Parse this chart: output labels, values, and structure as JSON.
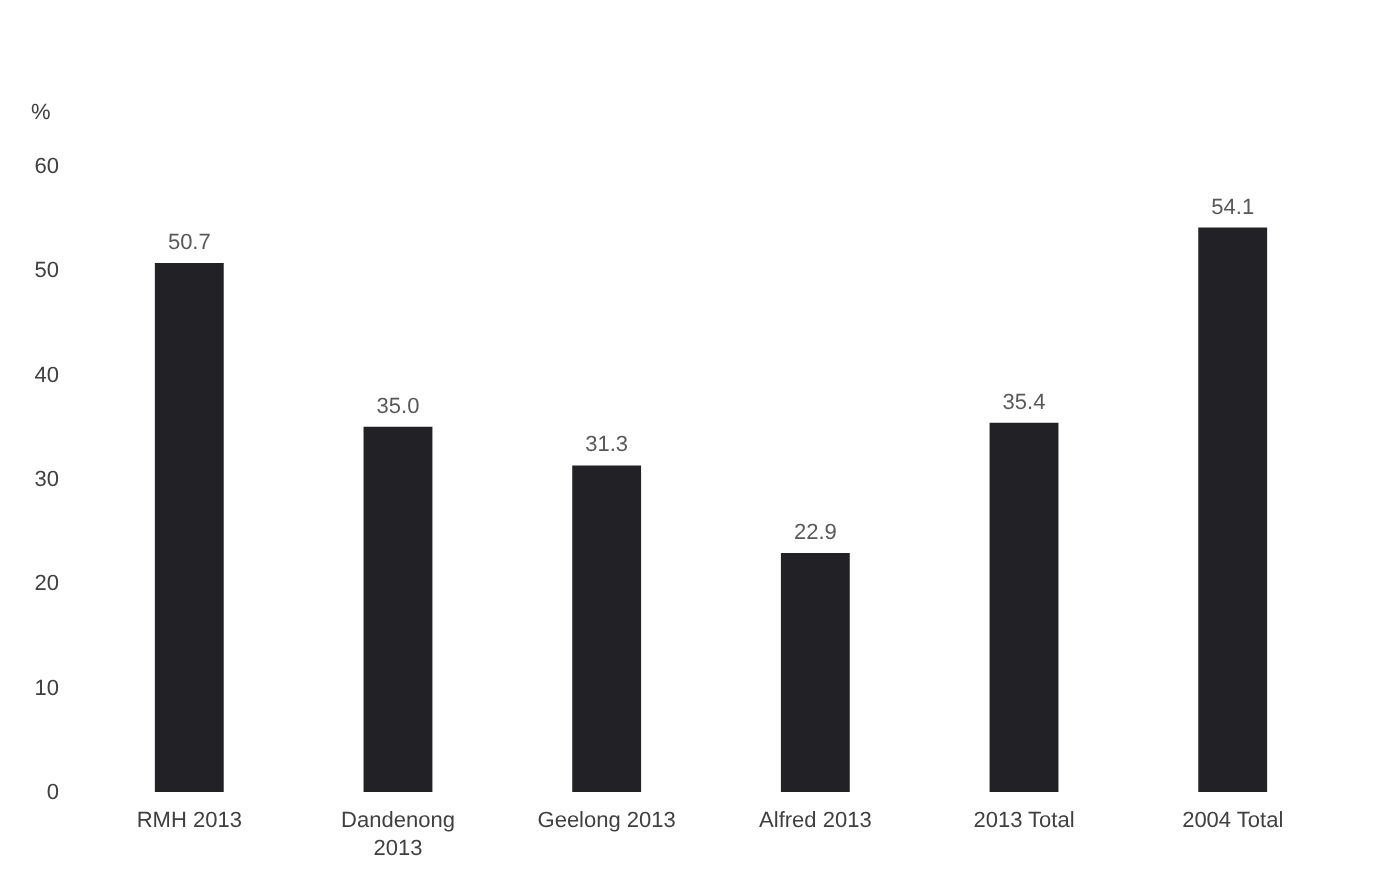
{
  "chart_data": {
    "type": "bar",
    "ylabel": "%",
    "categories": [
      "RMH 2013",
      "Dandenong 2013",
      "Geelong 2013",
      "Alfred 2013",
      "2013 Total",
      "2004 Total"
    ],
    "values": [
      50.7,
      35.0,
      31.3,
      22.9,
      35.4,
      54.1
    ],
    "value_labels": [
      "50.7",
      "35.0",
      "31.3",
      "22.9",
      "35.4",
      "54.1"
    ],
    "color": "#222226",
    "ylim": [
      0,
      60
    ],
    "yticks": [
      0,
      10,
      20,
      30,
      40,
      50,
      60
    ],
    "grid": false
  }
}
